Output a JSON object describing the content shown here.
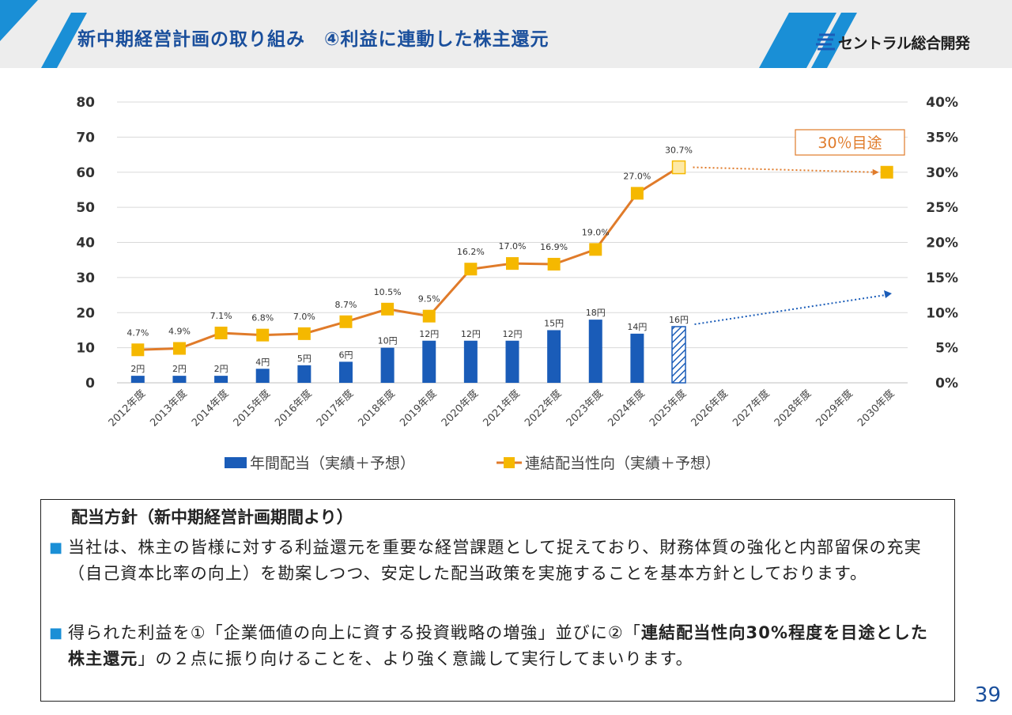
{
  "header": {
    "title": "新中期経営計画の取り組み　④利益に連動した株主還元",
    "logo_text": "セントラル総合開発",
    "accent_color": "#1a8fd6"
  },
  "chart_data": {
    "type": "bar+line",
    "categories": [
      "2012年度",
      "2013年度",
      "2014年度",
      "2015年度",
      "2016年度",
      "2017年度",
      "2018年度",
      "2019年度",
      "2020年度",
      "2021年度",
      "2022年度",
      "2023年度",
      "2024年度",
      "2025年度",
      "2026年度",
      "2027年度",
      "2028年度",
      "2029年度",
      "2030年度"
    ],
    "series": [
      {
        "name": "年間配当（実績＋予想）",
        "kind": "bar",
        "axis": "left",
        "color": "#1a5cb8",
        "values": [
          2,
          2,
          2,
          4,
          5,
          6,
          10,
          12,
          12,
          12,
          15,
          18,
          14,
          16,
          null,
          null,
          null,
          null,
          null
        ],
        "labels": [
          "2円",
          "2円",
          "2円",
          "4円",
          "5円",
          "6円",
          "10円",
          "12円",
          "12円",
          "12円",
          "15円",
          "18円",
          "14円",
          "16円",
          "",
          "",
          "",
          "",
          ""
        ],
        "forecast_index": 13
      },
      {
        "name": "連結配当性向（実績＋予想）",
        "kind": "line",
        "axis": "right",
        "color": "#e07b2a",
        "marker_color": "#f5b800",
        "values": [
          4.7,
          4.9,
          7.1,
          6.8,
          7.0,
          8.7,
          10.5,
          9.5,
          16.2,
          17.0,
          16.9,
          19.0,
          27.0,
          30.7,
          null,
          null,
          null,
          null,
          30.0
        ],
        "labels": [
          "4.7%",
          "4.9%",
          "7.1%",
          "6.8%",
          "7.0%",
          "8.7%",
          "10.5%",
          "9.5%",
          "16.2%",
          "17.0%",
          "16.9%",
          "19.0%",
          "27.0%",
          "30.7%",
          "",
          "",
          "",
          "",
          ""
        ]
      }
    ],
    "y_left": {
      "min": 0,
      "max": 80,
      "ticks": [
        "0",
        "10",
        "20",
        "30",
        "40",
        "50",
        "60",
        "70",
        "80"
      ]
    },
    "y_right": {
      "min": 0,
      "max": 40,
      "ticks": [
        "0%",
        "5%",
        "10%",
        "15%",
        "20%",
        "25%",
        "30%",
        "35%",
        "40%"
      ]
    },
    "annotation": "30％目途",
    "grid": true,
    "legend_position": "bottom"
  },
  "policy": {
    "heading": "配当方針（新中期経営計画期間より）",
    "bullet_marker": "■",
    "bullet1": "当社は、株主の皆様に対する利益還元を重要な経営課題として捉えており、財務体質の強化と内部留保の充実（自己資本比率の向上）を勘案しつつ、安定した配当政策を実施することを基本方針としております。",
    "bullet2_pre": "得られた利益を①「企業価値の向上に資する投資戦略の増強」並びに②「",
    "bullet2_bold": "連結配当性向30%程度を目途とした株主還元",
    "bullet2_post": "」の２点に振り向けることを、より強く意識して実行してまいります。"
  },
  "page_number": "39"
}
